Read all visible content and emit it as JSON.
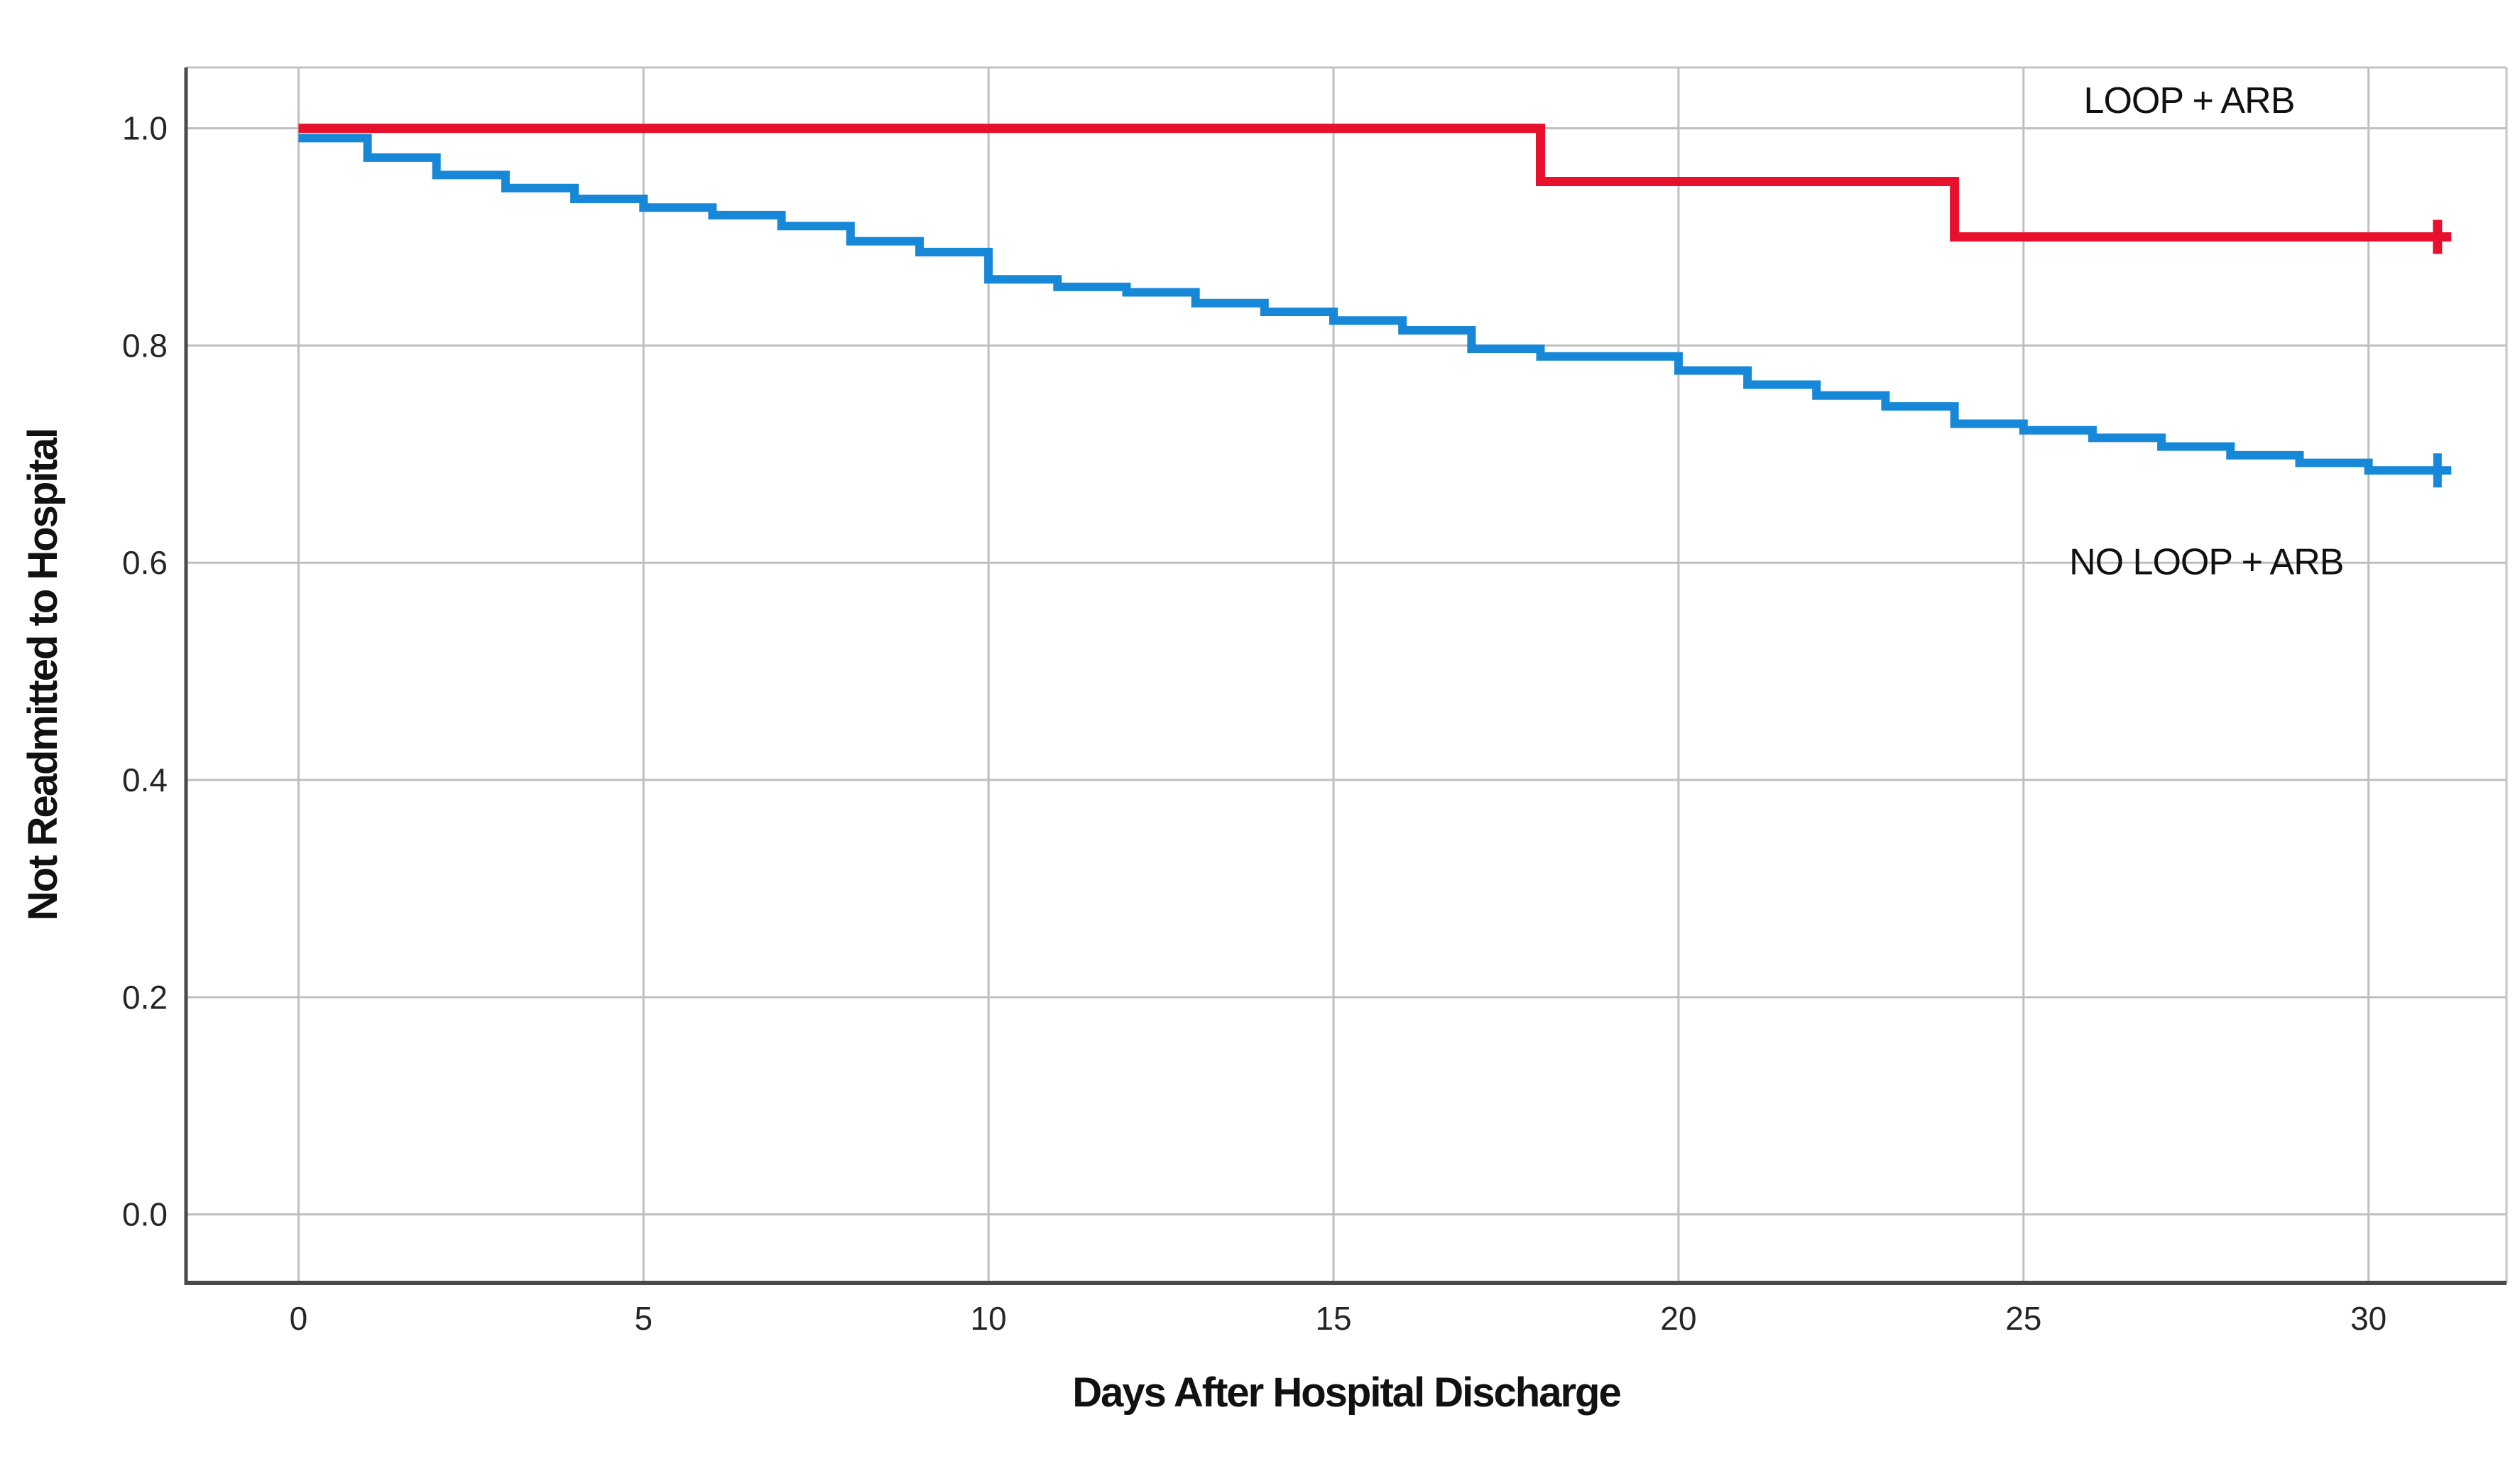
{
  "chart_data": {
    "type": "line",
    "subtype": "kaplan-meier-step",
    "title": "",
    "xlabel": "Days After Hospital Discharge",
    "ylabel": "Not Readmitted to Hospital",
    "xlim": [
      -1.63,
      32.0
    ],
    "ylim": [
      -0.063,
      1.056
    ],
    "grid": true,
    "grid_color": "#bfbfbf",
    "frame_color": "#c4c4c4",
    "axis_color": "#4a4a4a",
    "x_ticks": [
      {
        "v": 0,
        "label": "0"
      },
      {
        "v": 5,
        "label": "5"
      },
      {
        "v": 10,
        "label": "10"
      },
      {
        "v": 15,
        "label": "15"
      },
      {
        "v": 20,
        "label": "20"
      },
      {
        "v": 25,
        "label": "25"
      },
      {
        "v": 30,
        "label": "30"
      }
    ],
    "y_ticks": [
      {
        "v": 1.0,
        "label": "1.0"
      },
      {
        "v": 0.8,
        "label": "0.8"
      },
      {
        "v": 0.6,
        "label": "0.6"
      },
      {
        "v": 0.4,
        "label": "0.4"
      },
      {
        "v": 0.2,
        "label": "0.2"
      },
      {
        "v": 0.0,
        "label": "0.0"
      }
    ],
    "series": [
      {
        "name": "LOOP + ARB",
        "color": "#e8112d",
        "line_width": 13,
        "end_day": 31.2,
        "censor_day": 31.0,
        "steps": [
          [
            0,
            1.0
          ],
          [
            18,
            0.951
          ],
          [
            24,
            0.9
          ]
        ]
      },
      {
        "name": "NO LOOP + ARB",
        "color": "#1787d7",
        "line_width": 12,
        "end_day": 31.2,
        "censor_day": 31.0,
        "steps": [
          [
            0,
            0.991
          ],
          [
            1,
            0.973
          ],
          [
            2,
            0.957
          ],
          [
            3,
            0.945
          ],
          [
            4,
            0.935
          ],
          [
            5,
            0.927
          ],
          [
            6,
            0.92
          ],
          [
            7,
            0.91
          ],
          [
            8,
            0.896
          ],
          [
            9,
            0.886
          ],
          [
            10,
            0.861
          ],
          [
            11,
            0.854
          ],
          [
            12,
            0.849
          ],
          [
            13,
            0.839
          ],
          [
            14,
            0.831
          ],
          [
            15,
            0.823
          ],
          [
            16,
            0.814
          ],
          [
            17,
            0.797
          ],
          [
            18,
            0.79
          ],
          [
            20,
            0.777
          ],
          [
            21,
            0.764
          ],
          [
            22,
            0.754
          ],
          [
            23,
            0.744
          ],
          [
            24,
            0.728
          ],
          [
            25,
            0.722
          ],
          [
            26,
            0.715
          ],
          [
            27,
            0.707
          ],
          [
            28,
            0.699
          ],
          [
            29,
            0.692
          ],
          [
            30,
            0.685
          ]
        ]
      }
    ],
    "annotations": [
      {
        "text": "LOOP + ARB",
        "day": 27.4,
        "value": 1.026
      },
      {
        "text": "NO LOOP + ARB",
        "day": 27.65,
        "value": 0.601
      }
    ],
    "legend_position": "in-plot-right"
  }
}
